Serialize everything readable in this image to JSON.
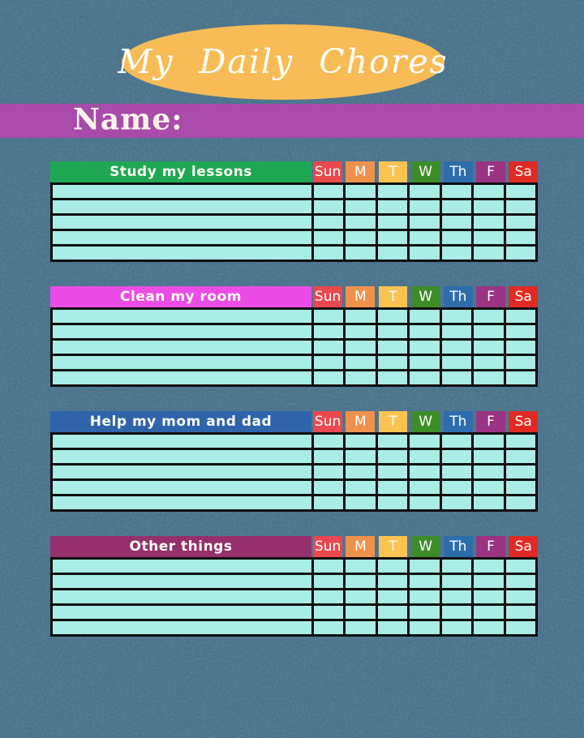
{
  "banner": {
    "title": "My Daily Chores"
  },
  "name_bar": {
    "label": "Name:"
  },
  "days": [
    {
      "label": "Sun",
      "color": "#e9484e"
    },
    {
      "label": "M",
      "color": "#f0914b"
    },
    {
      "label": "T",
      "color": "#fcc351"
    },
    {
      "label": "W",
      "color": "#3c8d28"
    },
    {
      "label": "Th",
      "color": "#2e6dac"
    },
    {
      "label": "F",
      "color": "#9a3382"
    },
    {
      "label": "Sa",
      "color": "#e02b24"
    }
  ],
  "chore_tables": [
    {
      "title": "Study my lessons",
      "header_color": "#1fa853",
      "row_count": 5
    },
    {
      "title": "Clean my room",
      "header_color": "#ec4ce6",
      "row_count": 5
    },
    {
      "title": "Help my mom and dad",
      "header_color": "#2f64ab",
      "row_count": 5
    },
    {
      "title": "Other things",
      "header_color": "#95306c",
      "row_count": 5
    }
  ],
  "colors": {
    "page_background": "#44708a",
    "banner_ellipse": "#f8bc56",
    "name_bar_background": "#a84baa",
    "cell_background": "#aaece6",
    "grid_line": "#0e0e0e"
  }
}
